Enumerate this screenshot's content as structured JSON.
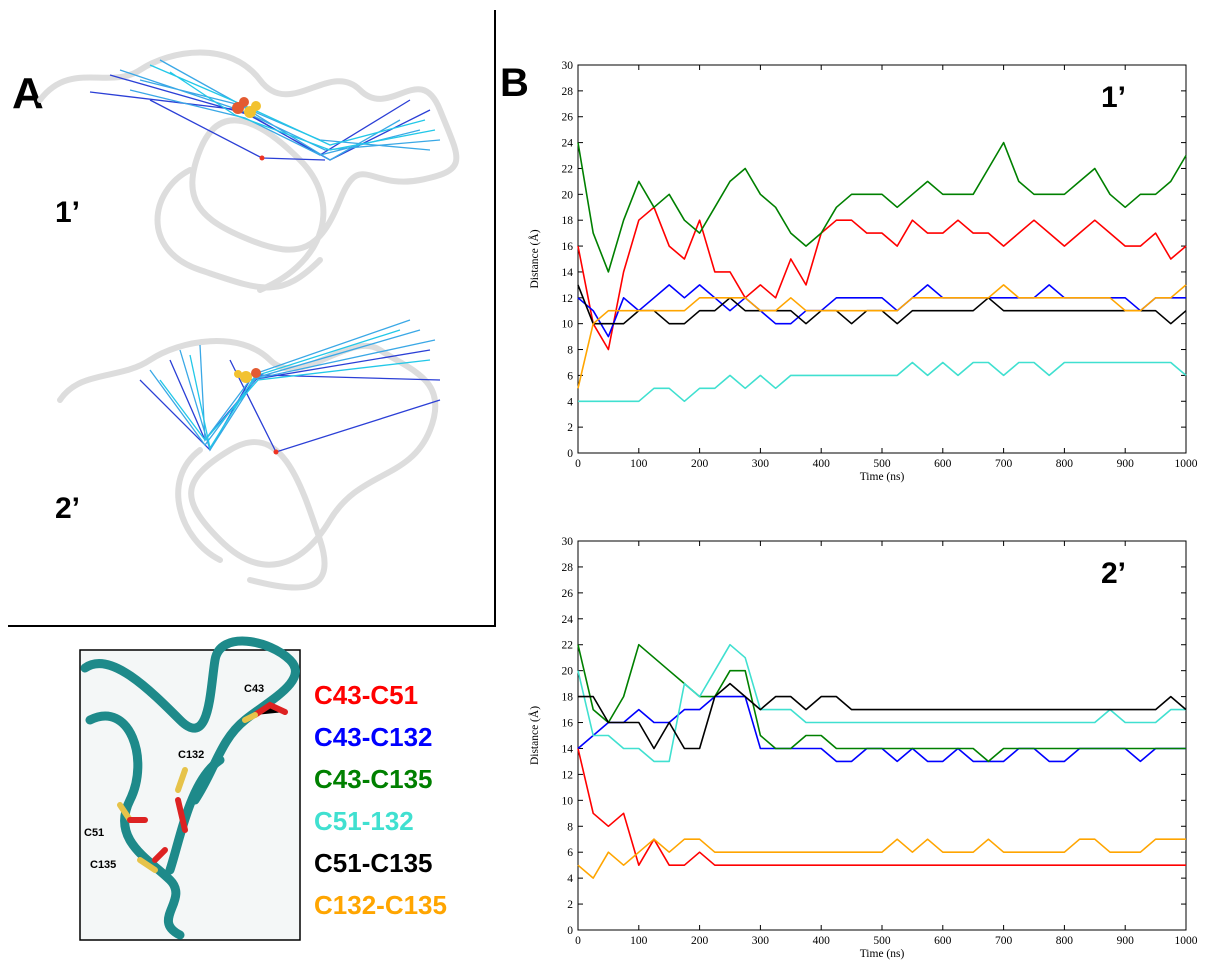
{
  "panel_labels": {
    "a": "A",
    "b": "B"
  },
  "panel_a": {
    "top_label": "1’",
    "bottom_label": "2’"
  },
  "structure_labels": {
    "c43": "C43",
    "c132": "C132",
    "c51": "C51",
    "c135": "C135"
  },
  "chart_data": [
    {
      "type": "line",
      "annotation": "1’",
      "xlabel": "Time (ns)",
      "ylabel": "Distance (Å)",
      "xlim": [
        0,
        1000
      ],
      "ylim": [
        0,
        30
      ],
      "xticks": [
        0,
        100,
        200,
        300,
        400,
        500,
        600,
        700,
        800,
        900,
        1000
      ],
      "yticks": [
        0,
        2,
        4,
        6,
        8,
        10,
        12,
        14,
        16,
        18,
        20,
        22,
        24,
        26,
        28,
        30
      ],
      "x": [
        0,
        25,
        50,
        75,
        100,
        125,
        150,
        175,
        200,
        225,
        250,
        275,
        300,
        325,
        350,
        375,
        400,
        425,
        450,
        475,
        500,
        525,
        550,
        575,
        600,
        625,
        650,
        675,
        700,
        725,
        750,
        775,
        800,
        825,
        850,
        875,
        900,
        925,
        950,
        975,
        1000
      ],
      "series": [
        {
          "name": "C43-C51",
          "color": "#ff0000",
          "values": [
            16,
            10,
            8,
            14,
            18,
            19,
            16,
            15,
            18,
            14,
            14,
            12,
            13,
            12,
            15,
            13,
            17,
            18,
            18,
            17,
            17,
            16,
            18,
            17,
            17,
            18,
            17,
            17,
            16,
            17,
            18,
            17,
            16,
            17,
            18,
            17,
            16,
            16,
            17,
            15,
            16
          ]
        },
        {
          "name": "C43-C132",
          "color": "#0000ff",
          "values": [
            12,
            11,
            9,
            12,
            11,
            12,
            13,
            12,
            13,
            12,
            11,
            12,
            11,
            10,
            10,
            11,
            11,
            12,
            12,
            12,
            12,
            11,
            12,
            13,
            12,
            12,
            12,
            12,
            12,
            12,
            12,
            13,
            12,
            12,
            12,
            12,
            12,
            11,
            12,
            12,
            12
          ]
        },
        {
          "name": "C43-C135",
          "color": "#008000",
          "values": [
            24,
            17,
            14,
            18,
            21,
            19,
            20,
            18,
            17,
            19,
            21,
            22,
            20,
            19,
            17,
            16,
            17,
            19,
            20,
            20,
            20,
            19,
            20,
            21,
            20,
            20,
            20,
            22,
            24,
            21,
            20,
            20,
            20,
            21,
            22,
            20,
            19,
            20,
            20,
            21,
            23
          ]
        },
        {
          "name": "C51-132",
          "color": "#40e0d0",
          "values": [
            4,
            4,
            4,
            4,
            4,
            5,
            5,
            4,
            5,
            5,
            6,
            5,
            6,
            5,
            6,
            6,
            6,
            6,
            6,
            6,
            6,
            6,
            7,
            6,
            7,
            6,
            7,
            7,
            6,
            7,
            7,
            6,
            7,
            7,
            7,
            7,
            7,
            7,
            7,
            7,
            6
          ]
        },
        {
          "name": "C51-C135",
          "color": "#000000",
          "values": [
            13,
            10,
            10,
            10,
            11,
            11,
            10,
            10,
            11,
            11,
            12,
            11,
            11,
            11,
            11,
            10,
            11,
            11,
            10,
            11,
            11,
            10,
            11,
            11,
            11,
            11,
            11,
            12,
            11,
            11,
            11,
            11,
            11,
            11,
            11,
            11,
            11,
            11,
            11,
            10,
            11
          ]
        },
        {
          "name": "C132-C135",
          "color": "#ffa500",
          "values": [
            5,
            10,
            11,
            11,
            11,
            11,
            11,
            11,
            12,
            12,
            12,
            12,
            11,
            11,
            12,
            11,
            11,
            11,
            11,
            11,
            11,
            11,
            12,
            12,
            12,
            12,
            12,
            12,
            13,
            12,
            12,
            12,
            12,
            12,
            12,
            12,
            11,
            11,
            12,
            12,
            13
          ]
        }
      ]
    },
    {
      "type": "line",
      "annotation": "2’",
      "xlabel": "Time (ns)",
      "ylabel": "Distance (Å)",
      "xlim": [
        0,
        1000
      ],
      "ylim": [
        0,
        30
      ],
      "xticks": [
        0,
        100,
        200,
        300,
        400,
        500,
        600,
        700,
        800,
        900,
        1000
      ],
      "yticks": [
        0,
        2,
        4,
        6,
        8,
        10,
        12,
        14,
        16,
        18,
        20,
        22,
        24,
        26,
        28,
        30
      ],
      "x": [
        0,
        25,
        50,
        75,
        100,
        125,
        150,
        175,
        200,
        225,
        250,
        275,
        300,
        325,
        350,
        375,
        400,
        425,
        450,
        475,
        500,
        525,
        550,
        575,
        600,
        625,
        650,
        675,
        700,
        725,
        750,
        775,
        800,
        825,
        850,
        875,
        900,
        925,
        950,
        975,
        1000
      ],
      "series": [
        {
          "name": "C43-C51",
          "color": "#ff0000",
          "values": [
            14,
            9,
            8,
            9,
            5,
            7,
            5,
            5,
            6,
            5,
            5,
            5,
            5,
            5,
            5,
            5,
            5,
            5,
            5,
            5,
            5,
            5,
            5,
            5,
            5,
            5,
            5,
            5,
            5,
            5,
            5,
            5,
            5,
            5,
            5,
            5,
            5,
            5,
            5,
            5,
            5
          ]
        },
        {
          "name": "C43-C132",
          "color": "#0000ff",
          "values": [
            14,
            15,
            16,
            16,
            17,
            16,
            16,
            17,
            17,
            18,
            18,
            18,
            14,
            14,
            14,
            14,
            14,
            13,
            13,
            14,
            14,
            13,
            14,
            13,
            13,
            14,
            13,
            13,
            13,
            14,
            14,
            13,
            13,
            14,
            14,
            14,
            14,
            13,
            14,
            14,
            14
          ]
        },
        {
          "name": "C43-C135",
          "color": "#008000",
          "values": [
            22,
            17,
            16,
            18,
            22,
            21,
            20,
            19,
            18,
            18,
            20,
            20,
            15,
            14,
            14,
            15,
            15,
            14,
            14,
            14,
            14,
            14,
            14,
            14,
            14,
            14,
            14,
            13,
            14,
            14,
            14,
            14,
            14,
            14,
            14,
            14,
            14,
            14,
            14,
            14,
            14
          ]
        },
        {
          "name": "C51-132",
          "color": "#40e0d0",
          "values": [
            20,
            15,
            15,
            14,
            14,
            13,
            13,
            19,
            18,
            20,
            22,
            21,
            17,
            17,
            17,
            16,
            16,
            16,
            16,
            16,
            16,
            16,
            16,
            16,
            16,
            16,
            16,
            16,
            16,
            16,
            16,
            16,
            16,
            16,
            16,
            17,
            16,
            16,
            16,
            17,
            17
          ]
        },
        {
          "name": "C51-C135",
          "color": "#000000",
          "values": [
            18,
            18,
            16,
            16,
            16,
            14,
            16,
            14,
            14,
            18,
            19,
            18,
            17,
            18,
            18,
            17,
            18,
            18,
            17,
            17,
            17,
            17,
            17,
            17,
            17,
            17,
            17,
            17,
            17,
            17,
            17,
            17,
            17,
            17,
            17,
            17,
            17,
            17,
            17,
            18,
            17
          ]
        },
        {
          "name": "C132-C135",
          "color": "#ffa500",
          "values": [
            5,
            4,
            6,
            5,
            6,
            7,
            6,
            7,
            7,
            6,
            6,
            6,
            6,
            6,
            6,
            6,
            6,
            6,
            6,
            6,
            6,
            7,
            6,
            7,
            6,
            6,
            6,
            7,
            6,
            6,
            6,
            6,
            6,
            7,
            7,
            6,
            6,
            6,
            7,
            7,
            7
          ]
        }
      ]
    }
  ]
}
